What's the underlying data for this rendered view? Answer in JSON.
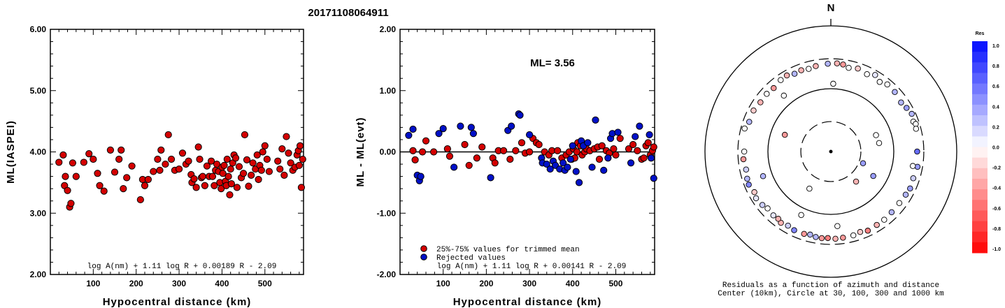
{
  "page_title": "20171108064911",
  "chart_data": [
    {
      "type": "scatter",
      "ylabel": "ML(IASPEI)",
      "xlabel": "Hypocentral distance (km)",
      "xlim": [
        0,
        590
      ],
      "ylim": [
        2.0,
        6.0
      ],
      "xticks": [
        "100",
        "200",
        "300",
        "400",
        "500"
      ],
      "yticks": [
        "2.00",
        "3.00",
        "4.00",
        "5.00",
        "6.00"
      ],
      "formula": "log A(nm) + 1.11 log R + 0.00189 R - 2.09",
      "color": "#d40000",
      "points": [
        [
          20,
          3.83
        ],
        [
          30,
          3.95
        ],
        [
          33,
          3.45
        ],
        [
          35,
          3.6
        ],
        [
          40,
          3.37
        ],
        [
          45,
          3.1
        ],
        [
          48,
          3.16
        ],
        [
          52,
          3.82
        ],
        [
          60,
          3.6
        ],
        [
          78,
          3.83
        ],
        [
          90,
          3.97
        ],
        [
          100,
          3.88
        ],
        [
          110,
          3.65
        ],
        [
          115,
          3.45
        ],
        [
          125,
          3.36
        ],
        [
          140,
          4.03
        ],
        [
          150,
          3.67
        ],
        [
          160,
          3.88
        ],
        [
          165,
          4.03
        ],
        [
          170,
          3.4
        ],
        [
          178,
          3.58
        ],
        [
          190,
          3.77
        ],
        [
          210,
          3.22
        ],
        [
          215,
          3.55
        ],
        [
          220,
          3.45
        ],
        [
          228,
          3.55
        ],
        [
          240,
          3.68
        ],
        [
          250,
          3.88
        ],
        [
          255,
          3.7
        ],
        [
          258,
          4.03
        ],
        [
          268,
          3.8
        ],
        [
          275,
          4.28
        ],
        [
          282,
          3.88
        ],
        [
          290,
          3.7
        ],
        [
          300,
          3.72
        ],
        [
          308,
          3.98
        ],
        [
          316,
          3.8
        ],
        [
          322,
          3.85
        ],
        [
          328,
          3.63
        ],
        [
          330,
          3.5
        ],
        [
          335,
          3.56
        ],
        [
          340,
          3.42
        ],
        [
          345,
          4.08
        ],
        [
          348,
          3.88
        ],
        [
          352,
          3.58
        ],
        [
          355,
          3.6
        ],
        [
          360,
          3.45
        ],
        [
          365,
          3.77
        ],
        [
          370,
          3.6
        ],
        [
          375,
          3.85
        ],
        [
          378,
          3.6
        ],
        [
          382,
          3.45
        ],
        [
          385,
          3.7
        ],
        [
          388,
          3.8
        ],
        [
          392,
          3.68
        ],
        [
          395,
          3.5
        ],
        [
          398,
          3.4
        ],
        [
          400,
          3.75
        ],
        [
          402,
          3.65
        ],
        [
          405,
          3.78
        ],
        [
          408,
          3.52
        ],
        [
          410,
          3.45
        ],
        [
          412,
          3.88
        ],
        [
          415,
          3.6
        ],
        [
          418,
          3.3
        ],
        [
          420,
          3.72
        ],
        [
          422,
          3.48
        ],
        [
          425,
          3.82
        ],
        [
          428,
          3.95
        ],
        [
          432,
          3.9
        ],
        [
          435,
          3.42
        ],
        [
          440,
          3.76
        ],
        [
          445,
          3.58
        ],
        [
          450,
          3.65
        ],
        [
          453,
          4.28
        ],
        [
          458,
          3.87
        ],
        [
          462,
          3.44
        ],
        [
          468,
          3.62
        ],
        [
          472,
          3.82
        ],
        [
          478,
          3.72
        ],
        [
          482,
          3.95
        ],
        [
          485,
          3.55
        ],
        [
          488,
          3.78
        ],
        [
          492,
          3.7
        ],
        [
          495,
          4.0
        ],
        [
          500,
          4.1
        ],
        [
          505,
          3.88
        ],
        [
          510,
          3.68
        ],
        [
          530,
          3.85
        ],
        [
          535,
          3.72
        ],
        [
          540,
          4.05
        ],
        [
          545,
          3.62
        ],
        [
          550,
          4.25
        ],
        [
          555,
          3.98
        ],
        [
          560,
          3.82
        ],
        [
          565,
          3.7
        ],
        [
          570,
          3.75
        ],
        [
          575,
          3.95
        ],
        [
          578,
          4.02
        ],
        [
          580,
          3.78
        ],
        [
          582,
          4.1
        ],
        [
          585,
          3.42
        ],
        [
          588,
          3.88
        ]
      ]
    },
    {
      "type": "scatter",
      "ylabel": "ML - ML(evt)",
      "xlabel": "Hypocentral distance (km)",
      "xlim": [
        0,
        590
      ],
      "ylim": [
        -2.0,
        2.0
      ],
      "xticks": [
        "100",
        "200",
        "300",
        "400",
        "500"
      ],
      "yticks": [
        "-2.00",
        "-1.00",
        "0.00",
        "1.00",
        "2.00"
      ],
      "annotation": "ML= 3.56",
      "formula": "log A(nm) + 1.11 log R + 0.00141 R - 2.09",
      "legend": {
        "placement": "bottom-left",
        "items": [
          {
            "label": "25%-75% values for trimmed mean",
            "color": "#d40000"
          },
          {
            "label": "Rejected values",
            "color": "#0010c8"
          }
        ]
      },
      "series": [
        {
          "name": "25%-75% values for trimmed mean",
          "color": "#d40000",
          "points": [
            [
              30,
              0.02
            ],
            [
              35,
              -0.13
            ],
            [
              52,
              0.0
            ],
            [
              60,
              0.18
            ],
            [
              78,
              0.0
            ],
            [
              110,
              0.05
            ],
            [
              115,
              -0.07
            ],
            [
              150,
              0.12
            ],
            [
              160,
              -0.22
            ],
            [
              178,
              -0.1
            ],
            [
              190,
              0.08
            ],
            [
              215,
              -0.1
            ],
            [
              220,
              -0.18
            ],
            [
              228,
              0.02
            ],
            [
              240,
              0.02
            ],
            [
              255,
              -0.12
            ],
            [
              268,
              0.02
            ],
            [
              282,
              0.15
            ],
            [
              290,
              -0.02
            ],
            [
              300,
              0.0
            ],
            [
              308,
              0.22
            ],
            [
              316,
              0.15
            ],
            [
              322,
              0.12
            ],
            [
              335,
              0.0
            ],
            [
              345,
              -0.05
            ],
            [
              352,
              0.02
            ],
            [
              365,
              0.02
            ],
            [
              375,
              -0.1
            ],
            [
              385,
              -0.05
            ],
            [
              392,
              0.0
            ],
            [
              398,
              -0.12
            ],
            [
              402,
              0.05
            ],
            [
              405,
              -0.1
            ],
            [
              410,
              0.0
            ],
            [
              412,
              0.15
            ],
            [
              418,
              0.1
            ],
            [
              422,
              -0.05
            ],
            [
              428,
              0.0
            ],
            [
              432,
              0.05
            ],
            [
              440,
              0.02
            ],
            [
              450,
              0.05
            ],
            [
              458,
              0.08
            ],
            [
              462,
              -0.12
            ],
            [
              468,
              0.1
            ],
            [
              478,
              0.02
            ],
            [
              485,
              -0.02
            ],
            [
              495,
              0.05
            ],
            [
              500,
              -0.05
            ],
            [
              510,
              0.22
            ],
            [
              530,
              0.05
            ],
            [
              540,
              0.12
            ],
            [
              550,
              0.02
            ],
            [
              560,
              -0.12
            ],
            [
              565,
              -0.1
            ],
            [
              570,
              0.1
            ],
            [
              575,
              0.15
            ],
            [
              580,
              -0.05
            ],
            [
              585,
              0.02
            ],
            [
              588,
              0.08
            ]
          ]
        },
        {
          "name": "Rejected values",
          "color": "#0010c8",
          "points": [
            [
              20,
              0.27
            ],
            [
              30,
              0.37
            ],
            [
              40,
              -0.38
            ],
            [
              45,
              -0.47
            ],
            [
              48,
              -0.4
            ],
            [
              90,
              0.3
            ],
            [
              100,
              0.38
            ],
            [
              125,
              -0.25
            ],
            [
              140,
              0.42
            ],
            [
              165,
              0.4
            ],
            [
              170,
              0.3
            ],
            [
              210,
              -0.42
            ],
            [
              250,
              0.35
            ],
            [
              258,
              0.42
            ],
            [
              275,
              0.62
            ],
            [
              278,
              0.6
            ],
            [
              300,
              0.28
            ],
            [
              328,
              -0.1
            ],
            [
              330,
              -0.18
            ],
            [
              340,
              -0.2
            ],
            [
              348,
              -0.28
            ],
            [
              355,
              -0.15
            ],
            [
              360,
              -0.22
            ],
            [
              370,
              -0.28
            ],
            [
              378,
              -0.18
            ],
            [
              382,
              -0.3
            ],
            [
              388,
              -0.25
            ],
            [
              395,
              -0.12
            ],
            [
              400,
              0.1
            ],
            [
              408,
              -0.32
            ],
            [
              415,
              -0.5
            ],
            [
              420,
              0.18
            ],
            [
              425,
              0.1
            ],
            [
              435,
              0.15
            ],
            [
              445,
              -0.25
            ],
            [
              453,
              0.52
            ],
            [
              472,
              -0.3
            ],
            [
              482,
              -0.1
            ],
            [
              488,
              0.22
            ],
            [
              492,
              0.3
            ],
            [
              505,
              0.32
            ],
            [
              535,
              -0.18
            ],
            [
              545,
              0.25
            ],
            [
              555,
              0.42
            ],
            [
              578,
              0.28
            ],
            [
              582,
              -0.1
            ],
            [
              588,
              -0.43
            ]
          ]
        }
      ]
    },
    {
      "type": "polar-scatter",
      "north_label": "N",
      "rings_km": [
        30,
        100,
        300,
        1000
      ],
      "center_km": 10,
      "caption_line1": "Residuals as a function of azimuth and distance",
      "caption_line2": "Center (10km), Circle at 30, 100, 300 and 1000 km",
      "colorbar": {
        "title": "Res",
        "ticks": [
          "1.0",
          "0.8",
          "0.6",
          "0.4",
          "0.2",
          "0.0",
          "-0.2",
          "-0.4",
          "-0.6",
          "-0.8",
          "-1.0"
        ]
      },
      "points": [
        [
          358,
          250,
          0.3
        ],
        [
          4,
          255,
          -0.3
        ],
        [
          8,
          250,
          -0.4
        ],
        [
          12,
          230,
          0.0
        ],
        [
          18,
          245,
          -0.2
        ],
        [
          25,
          228,
          0.0
        ],
        [
          30,
          255,
          0.1
        ],
        [
          35,
          225,
          0.0
        ],
        [
          40,
          248,
          0.0
        ],
        [
          47,
          245,
          0.3
        ],
        [
          55,
          230,
          0.3
        ],
        [
          60,
          245,
          0.4
        ],
        [
          65,
          262,
          0.3
        ],
        [
          70,
          248,
          0.0
        ],
        [
          72,
          262,
          0.0
        ],
        [
          75,
          252,
          0.0
        ],
        [
          90,
          235,
          0.6
        ],
        [
          100,
          250,
          0.4
        ],
        [
          108,
          238,
          0.2
        ],
        [
          115,
          245,
          0.4
        ],
        [
          120,
          236,
          0.3
        ],
        [
          127,
          230,
          0.0
        ],
        [
          135,
          232,
          0.3
        ],
        [
          142,
          238,
          0.0
        ],
        [
          148,
          238,
          -0.3
        ],
        [
          155,
          245,
          -0.5
        ],
        [
          160,
          230,
          -0.2
        ],
        [
          165,
          240,
          0.0
        ],
        [
          172,
          242,
          -0.4
        ],
        [
          177,
          245,
          -0.3
        ],
        [
          182,
          238,
          -0.5
        ],
        [
          186,
          243,
          -0.4
        ],
        [
          190,
          240,
          0.3
        ],
        [
          194,
          230,
          0.3
        ],
        [
          198,
          238,
          -0.4
        ],
        [
          205,
          240,
          0.5
        ],
        [
          210,
          230,
          0.2
        ],
        [
          215,
          242,
          -0.3
        ],
        [
          218,
          228,
          -0.3
        ],
        [
          222,
          232,
          0.1
        ],
        [
          228,
          225,
          0.0
        ],
        [
          232,
          240,
          0.2
        ],
        [
          238,
          252,
          0.1
        ],
        [
          242,
          238,
          -0.2
        ],
        [
          248,
          255,
          0.5
        ],
        [
          252,
          250,
          0.3
        ],
        [
          258,
          238,
          0.2
        ],
        [
          265,
          248,
          -0.4
        ],
        [
          270,
          238,
          0.0
        ],
        [
          285,
          262,
          0.0
        ],
        [
          290,
          240,
          0.3
        ],
        [
          298,
          246,
          -0.2
        ],
        [
          305,
          232,
          -0.3
        ],
        [
          312,
          235,
          0.0
        ],
        [
          318,
          228,
          -0.4
        ],
        [
          325,
          245,
          0.0
        ],
        [
          330,
          250,
          -0.3
        ],
        [
          335,
          232,
          0.3
        ],
        [
          340,
          238,
          -0.3
        ],
        [
          345,
          230,
          0.0
        ],
        [
          350,
          240,
          -0.3
        ],
        [
          2,
          120,
          0.0
        ],
        [
          320,
          145,
          0.0
        ],
        [
          290,
          60,
          -0.4
        ],
        [
          70,
          58,
          0.0
        ],
        [
          80,
          60,
          0.0
        ],
        [
          120,
          60,
          0.4
        ],
        [
          110,
          35,
          0.4
        ],
        [
          140,
          42,
          -0.3
        ],
        [
          210,
          48,
          0.0
        ],
        [
          100,
          210,
          0.0
        ],
        [
          175,
          155,
          0.0
        ],
        [
          250,
          140,
          0.3
        ],
        [
          205,
          130,
          0.0
        ]
      ]
    }
  ]
}
